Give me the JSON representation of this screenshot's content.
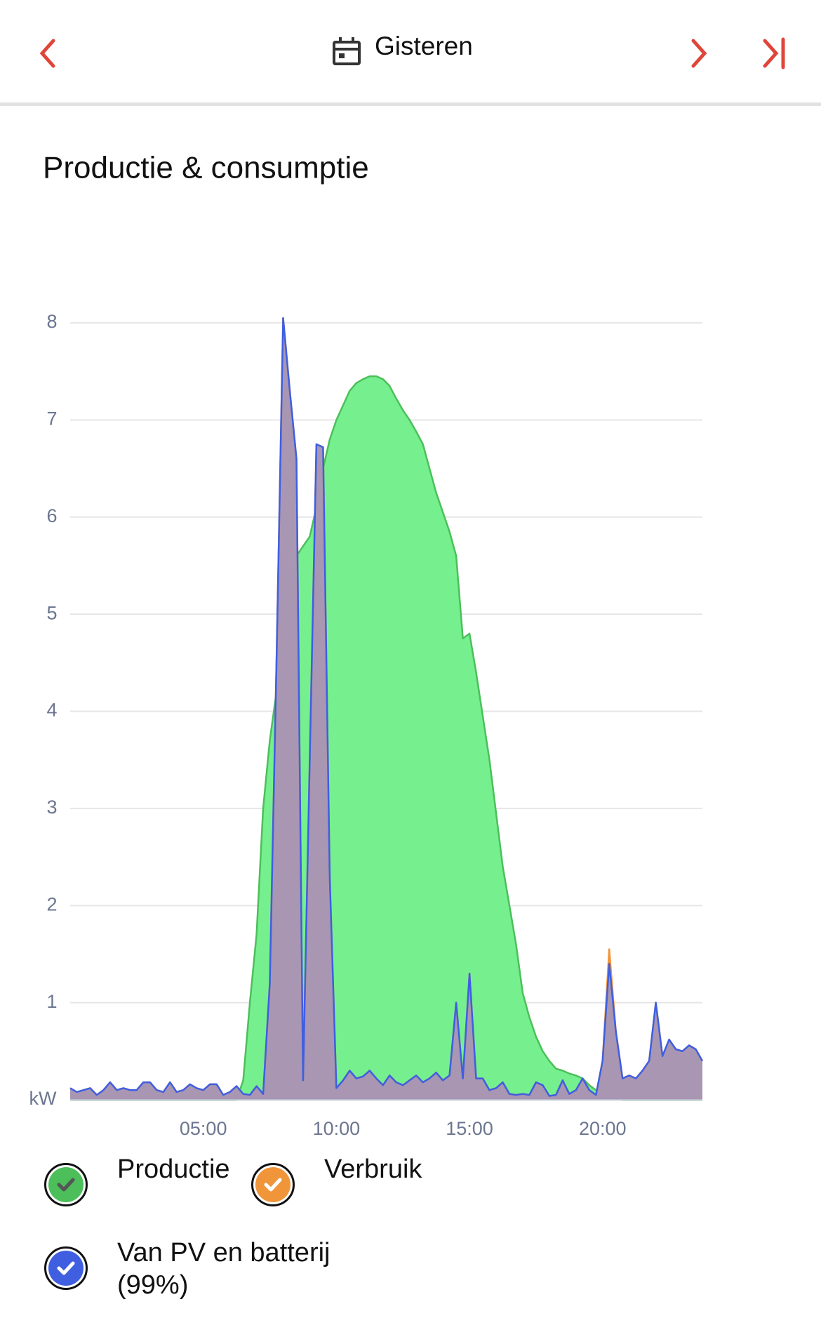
{
  "header": {
    "title": "Gisteren"
  },
  "chart_data": {
    "type": "area",
    "title": "Productie & consumptie",
    "y_label": "kW",
    "x": [
      0,
      0.25,
      0.5,
      0.75,
      1,
      1.25,
      1.5,
      1.75,
      2,
      2.25,
      2.5,
      2.75,
      3,
      3.25,
      3.5,
      3.75,
      4,
      4.25,
      4.5,
      4.75,
      5,
      5.25,
      5.5,
      5.75,
      6,
      6.25,
      6.5,
      6.75,
      7,
      7.25,
      7.5,
      7.75,
      8,
      8.25,
      8.5,
      8.75,
      9,
      9.25,
      9.5,
      9.75,
      10,
      10.25,
      10.5,
      10.75,
      11,
      11.25,
      11.5,
      11.75,
      12,
      12.25,
      12.5,
      12.75,
      13,
      13.25,
      13.5,
      13.75,
      14,
      14.25,
      14.5,
      14.75,
      15,
      15.25,
      15.5,
      15.75,
      16,
      16.25,
      16.5,
      16.75,
      17,
      17.25,
      17.5,
      17.75,
      18,
      18.25,
      18.5,
      18.75,
      19,
      19.25,
      19.5,
      19.75,
      20,
      20.25,
      20.5,
      20.75,
      21,
      21.25,
      21.5,
      21.75,
      22,
      22.25,
      22.5,
      22.75,
      23,
      23.25,
      23.5,
      23.75
    ],
    "series": [
      {
        "name": "Productie",
        "color": "#4cbf5a",
        "fill": "#76f08e",
        "values": [
          0,
          0,
          0,
          0,
          0,
          0,
          0,
          0,
          0,
          0,
          0,
          0,
          0,
          0,
          0,
          0,
          0,
          0,
          0,
          0,
          0,
          0,
          0,
          0,
          0,
          0,
          0.2,
          1.0,
          1.7,
          3.0,
          3.7,
          4.2,
          4.8,
          5.2,
          5.6,
          5.7,
          5.8,
          6.1,
          6.5,
          6.8,
          7.0,
          7.15,
          7.3,
          7.38,
          7.42,
          7.45,
          7.45,
          7.42,
          7.35,
          7.22,
          7.1,
          7.0,
          6.88,
          6.75,
          6.5,
          6.25,
          6.05,
          5.85,
          5.6,
          4.75,
          4.8,
          4.4,
          3.95,
          3.5,
          2.95,
          2.4,
          2.0,
          1.6,
          1.1,
          0.85,
          0.65,
          0.5,
          0.4,
          0.32,
          0.3,
          0.27,
          0.25,
          0.22,
          0.15,
          0.1,
          0.06,
          0.03,
          0.01,
          0,
          0,
          0,
          0,
          0,
          0,
          0,
          0,
          0,
          0,
          0,
          0,
          0
        ]
      },
      {
        "name": "Verbruik",
        "color": "#f0953a",
        "fill": "#f0b070",
        "values": [
          0.12,
          0.08,
          0.1,
          0.12,
          0.05,
          0.1,
          0.18,
          0.1,
          0.12,
          0.1,
          0.1,
          0.18,
          0.18,
          0.1,
          0.08,
          0.18,
          0.08,
          0.1,
          0.16,
          0.12,
          0.1,
          0.16,
          0.16,
          0.05,
          0.08,
          0.14,
          0.06,
          0.05,
          0.14,
          0.06,
          1.2,
          4.5,
          8.05,
          7.3,
          6.6,
          0.2,
          3.5,
          6.75,
          6.72,
          2.3,
          0.12,
          0.2,
          0.3,
          0.22,
          0.24,
          0.3,
          0.22,
          0.15,
          0.25,
          0.18,
          0.15,
          0.2,
          0.25,
          0.18,
          0.22,
          0.28,
          0.2,
          0.25,
          1.0,
          0.22,
          1.3,
          0.22,
          0.22,
          0.1,
          0.12,
          0.18,
          0.06,
          0.05,
          0.06,
          0.05,
          0.18,
          0.15,
          0.04,
          0.05,
          0.2,
          0.06,
          0.1,
          0.22,
          0.1,
          0.05,
          0.4,
          1.55,
          0.7,
          0.22,
          0.25,
          0.22,
          0.3,
          0.4,
          1.0,
          0.45,
          0.62,
          0.52,
          0.5,
          0.56,
          0.52,
          0.4
        ]
      },
      {
        "name": "Van PV en batterij (99%)",
        "color": "#3f5fe0",
        "fill": "rgba(110,130,235,0.55)",
        "values": [
          0.12,
          0.08,
          0.1,
          0.12,
          0.05,
          0.1,
          0.18,
          0.1,
          0.12,
          0.1,
          0.1,
          0.18,
          0.18,
          0.1,
          0.08,
          0.18,
          0.08,
          0.1,
          0.16,
          0.12,
          0.1,
          0.16,
          0.16,
          0.05,
          0.08,
          0.14,
          0.06,
          0.05,
          0.14,
          0.06,
          1.2,
          4.5,
          8.05,
          7.3,
          6.6,
          0.2,
          3.5,
          6.75,
          6.72,
          2.3,
          0.12,
          0.2,
          0.3,
          0.22,
          0.24,
          0.3,
          0.22,
          0.15,
          0.25,
          0.18,
          0.15,
          0.2,
          0.25,
          0.18,
          0.22,
          0.28,
          0.2,
          0.25,
          1.0,
          0.22,
          1.3,
          0.22,
          0.22,
          0.1,
          0.12,
          0.18,
          0.06,
          0.05,
          0.06,
          0.05,
          0.18,
          0.15,
          0.04,
          0.05,
          0.2,
          0.06,
          0.1,
          0.22,
          0.1,
          0.05,
          0.4,
          1.4,
          0.7,
          0.22,
          0.25,
          0.22,
          0.3,
          0.4,
          1.0,
          0.45,
          0.62,
          0.52,
          0.5,
          0.56,
          0.52,
          0.4
        ]
      }
    ],
    "xlim": [
      0,
      23.75
    ],
    "ylim": [
      0,
      8
    ],
    "xticks": [
      {
        "value": 5,
        "label": "05:00"
      },
      {
        "value": 10,
        "label": "10:00"
      },
      {
        "value": 15,
        "label": "15:00"
      },
      {
        "value": 20,
        "label": "20:00"
      }
    ],
    "yticks": [
      1,
      2,
      3,
      4,
      5,
      6,
      7,
      8
    ],
    "grid": true
  }
}
